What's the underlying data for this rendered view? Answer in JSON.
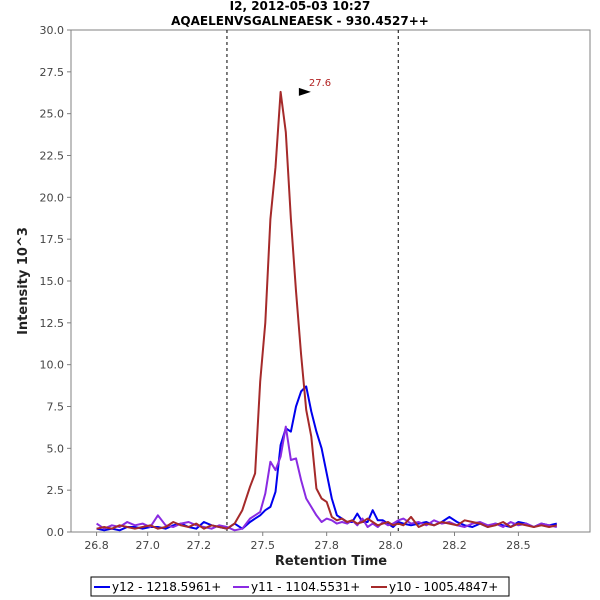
{
  "chart_data": {
    "type": "line",
    "title": "I2, 2012-05-03 10:27",
    "subtitle": "AQAELENVSGALNEAESK - 930.4527++",
    "xlabel": "Retention Time",
    "ylabel": "Intensity 10^3",
    "xlim": [
      26.7,
      28.73
    ],
    "ylim": [
      0,
      30
    ],
    "x_ticks": [
      "26.8",
      "27.0",
      "27.2",
      "27.5",
      "27.8",
      "28.0",
      "28.2",
      "28.5"
    ],
    "x_tick_values": [
      26.8,
      27.0,
      27.2,
      27.45,
      27.7,
      27.95,
      28.2,
      28.45
    ],
    "y_ticks": [
      "0.0",
      "2.5",
      "5.0",
      "7.5",
      "10.0",
      "12.5",
      "15.0",
      "17.5",
      "20.0",
      "22.5",
      "25.0",
      "27.5",
      "30.0"
    ],
    "y_tick_values": [
      0,
      2.5,
      5,
      7.5,
      10,
      12.5,
      15,
      17.5,
      20,
      22.5,
      25,
      27.5,
      30
    ],
    "boundaries": [
      27.31,
      27.98
    ],
    "annotation": {
      "text": "27.6",
      "x": 27.65,
      "y": 26.3,
      "color": "#b22222"
    },
    "legend_position": "bottom",
    "series": [
      {
        "name": "y12 - 1218.5961+",
        "color": "#0000ee",
        "x": [
          26.8,
          26.83,
          26.86,
          26.89,
          26.92,
          26.95,
          26.98,
          27.01,
          27.04,
          27.07,
          27.1,
          27.13,
          27.16,
          27.19,
          27.22,
          27.25,
          27.28,
          27.31,
          27.34,
          27.37,
          27.4,
          27.42,
          27.44,
          27.46,
          27.48,
          27.5,
          27.52,
          27.54,
          27.56,
          27.58,
          27.6,
          27.62,
          27.64,
          27.66,
          27.68,
          27.7,
          27.72,
          27.74,
          27.76,
          27.78,
          27.8,
          27.82,
          27.84,
          27.86,
          27.88,
          27.9,
          27.92,
          27.94,
          27.96,
          27.98,
          28.0,
          28.03,
          28.06,
          28.09,
          28.12,
          28.15,
          28.18,
          28.21,
          28.24,
          28.27,
          28.3,
          28.33,
          28.36,
          28.39,
          28.42,
          28.45,
          28.48,
          28.51,
          28.54,
          28.57,
          28.6
        ],
        "values": [
          0.2,
          0.1,
          0.2,
          0.1,
          0.3,
          0.3,
          0.2,
          0.3,
          0.3,
          0.2,
          0.4,
          0.5,
          0.3,
          0.2,
          0.6,
          0.4,
          0.3,
          0.2,
          0.5,
          0.2,
          0.6,
          0.8,
          1.0,
          1.3,
          1.5,
          2.4,
          5.2,
          6.2,
          6.0,
          7.5,
          8.4,
          8.7,
          7.2,
          6.0,
          5.0,
          3.5,
          2.0,
          1.0,
          0.8,
          0.6,
          0.6,
          1.1,
          0.6,
          0.6,
          1.3,
          0.7,
          0.7,
          0.5,
          0.3,
          0.6,
          0.5,
          0.4,
          0.5,
          0.6,
          0.4,
          0.6,
          0.9,
          0.6,
          0.4,
          0.3,
          0.5,
          0.3,
          0.5,
          0.4,
          0.3,
          0.6,
          0.5,
          0.3,
          0.5,
          0.4,
          0.5
        ]
      },
      {
        "name": "y11 - 1104.5531+",
        "color": "#8a2be2",
        "x": [
          26.8,
          26.83,
          26.86,
          26.89,
          26.92,
          26.95,
          26.98,
          27.01,
          27.04,
          27.07,
          27.1,
          27.13,
          27.16,
          27.19,
          27.22,
          27.25,
          27.28,
          27.31,
          27.34,
          27.37,
          27.4,
          27.42,
          27.44,
          27.46,
          27.48,
          27.5,
          27.52,
          27.54,
          27.56,
          27.58,
          27.6,
          27.62,
          27.64,
          27.66,
          27.68,
          27.7,
          27.72,
          27.74,
          27.76,
          27.78,
          27.8,
          27.82,
          27.84,
          27.86,
          27.88,
          27.9,
          27.92,
          27.94,
          27.96,
          27.98,
          28.0,
          28.03,
          28.06,
          28.09,
          28.12,
          28.15,
          28.18,
          28.21,
          28.24,
          28.27,
          28.3,
          28.33,
          28.36,
          28.39,
          28.42,
          28.45,
          28.48,
          28.51,
          28.54,
          28.57,
          28.6
        ],
        "values": [
          0.5,
          0.2,
          0.4,
          0.3,
          0.6,
          0.4,
          0.5,
          0.3,
          1.0,
          0.4,
          0.3,
          0.5,
          0.6,
          0.4,
          0.3,
          0.2,
          0.4,
          0.3,
          0.1,
          0.2,
          0.8,
          1.0,
          1.2,
          2.3,
          4.2,
          3.7,
          4.5,
          6.3,
          4.3,
          4.4,
          3.1,
          2.0,
          1.5,
          1.0,
          0.6,
          0.8,
          0.7,
          0.5,
          0.6,
          0.5,
          0.7,
          0.4,
          0.8,
          0.3,
          0.5,
          0.3,
          0.6,
          0.4,
          0.5,
          0.7,
          0.8,
          0.5,
          0.6,
          0.4,
          0.7,
          0.5,
          0.6,
          0.4,
          0.3,
          0.5,
          0.6,
          0.4,
          0.5,
          0.3,
          0.6,
          0.4,
          0.5,
          0.3,
          0.5,
          0.4,
          0.3
        ]
      },
      {
        "name": "y10 - 1005.4847+",
        "color": "#a52a2a",
        "x": [
          26.8,
          26.83,
          26.86,
          26.89,
          26.92,
          26.95,
          26.98,
          27.01,
          27.04,
          27.07,
          27.1,
          27.13,
          27.16,
          27.19,
          27.22,
          27.25,
          27.28,
          27.31,
          27.34,
          27.37,
          27.4,
          27.42,
          27.44,
          27.46,
          27.48,
          27.5,
          27.52,
          27.54,
          27.56,
          27.58,
          27.6,
          27.62,
          27.64,
          27.66,
          27.68,
          27.7,
          27.72,
          27.74,
          27.76,
          27.78,
          27.8,
          27.82,
          27.84,
          27.86,
          27.88,
          27.9,
          27.92,
          27.94,
          27.96,
          27.98,
          28.0,
          28.03,
          28.06,
          28.09,
          28.12,
          28.15,
          28.18,
          28.21,
          28.24,
          28.27,
          28.3,
          28.33,
          28.36,
          28.39,
          28.42,
          28.45,
          28.48,
          28.51,
          28.54,
          28.57,
          28.6
        ],
        "values": [
          0.2,
          0.3,
          0.2,
          0.4,
          0.3,
          0.2,
          0.3,
          0.4,
          0.2,
          0.3,
          0.6,
          0.4,
          0.3,
          0.5,
          0.2,
          0.4,
          0.3,
          0.2,
          0.5,
          1.3,
          2.7,
          3.5,
          9.0,
          12.5,
          18.7,
          21.8,
          26.3,
          23.9,
          18.7,
          14.4,
          10.6,
          7.3,
          5.7,
          2.6,
          2.0,
          1.8,
          0.9,
          0.7,
          0.8,
          0.6,
          0.7,
          0.5,
          0.6,
          0.8,
          0.6,
          0.4,
          0.5,
          0.6,
          0.4,
          0.5,
          0.4,
          0.9,
          0.3,
          0.5,
          0.4,
          0.6,
          0.5,
          0.4,
          0.7,
          0.6,
          0.5,
          0.3,
          0.4,
          0.6,
          0.3,
          0.5,
          0.4,
          0.3,
          0.4,
          0.3,
          0.4
        ]
      }
    ]
  }
}
